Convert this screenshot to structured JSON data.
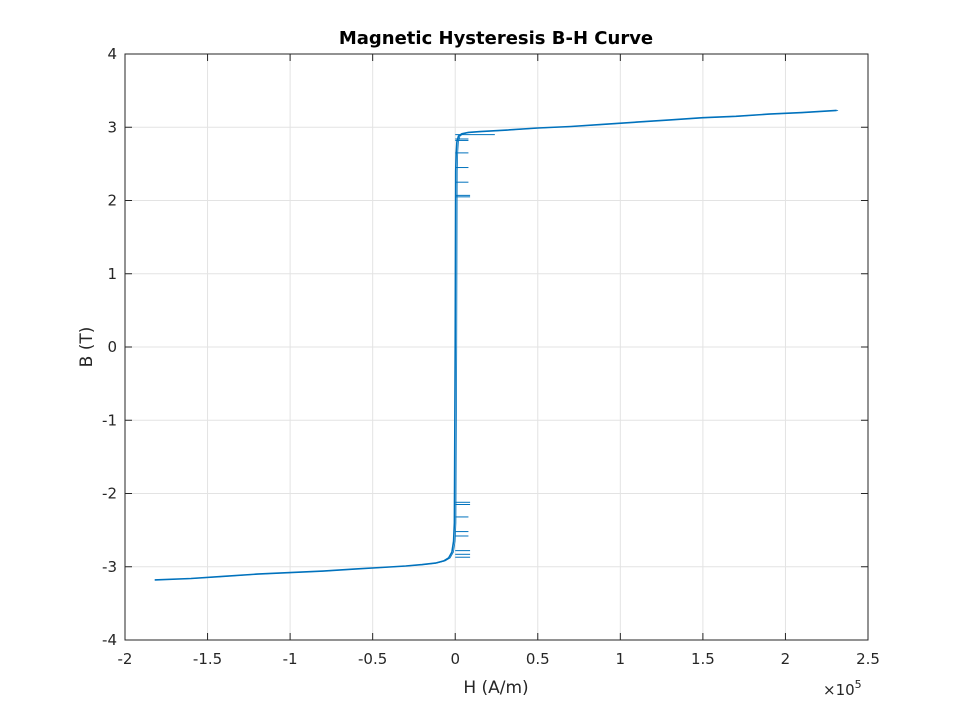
{
  "chart_data": {
    "type": "line",
    "title": "Magnetic Hysteresis B-H Curve",
    "xlabel": "H (A/m)",
    "ylabel": "B (T)",
    "x_multiplier_label": "×10",
    "x_multiplier_exponent": "5",
    "x_scale_factor": 100000,
    "xlim": [
      -2,
      2.5
    ],
    "ylim": [
      -4,
      4
    ],
    "xticks": [
      -2,
      -1.5,
      -1,
      -0.5,
      0,
      0.5,
      1,
      1.5,
      2,
      2.5
    ],
    "xtick_labels": [
      "-2",
      "-1.5",
      "-1",
      "-0.5",
      "0",
      "0.5",
      "1",
      "1.5",
      "2",
      "2.5"
    ],
    "yticks": [
      -4,
      -3,
      -2,
      -1,
      0,
      1,
      2,
      3,
      4
    ],
    "ytick_labels": [
      "-4",
      "-3",
      "-2",
      "-1",
      "0",
      "1",
      "2",
      "3",
      "4"
    ],
    "grid": true,
    "legend": "none",
    "line_color": "#0072BD",
    "series": [
      {
        "x": [
          -1.82,
          -1.6,
          -1.4,
          -1.2,
          -1.0,
          -0.8,
          -0.6,
          -0.45,
          -0.3,
          -0.2,
          -0.12,
          -0.07,
          -0.04,
          -0.02,
          -0.01,
          -0.005,
          0.0,
          0.003,
          0.006,
          0.01,
          0.02,
          0.04,
          0.08,
          0.15,
          0.3,
          0.5,
          0.7,
          0.9,
          1.1,
          1.3,
          1.5,
          1.7,
          1.9,
          2.1,
          2.31
        ],
        "y": [
          -3.18,
          -3.16,
          -3.13,
          -3.1,
          -3.08,
          -3.06,
          -3.03,
          -3.01,
          -2.99,
          -2.97,
          -2.95,
          -2.92,
          -2.88,
          -2.8,
          -2.65,
          -2.4,
          0.0,
          2.4,
          2.65,
          2.8,
          2.88,
          2.91,
          2.93,
          2.94,
          2.96,
          2.99,
          3.01,
          3.04,
          3.07,
          3.1,
          3.13,
          3.15,
          3.18,
          3.2,
          3.23
        ]
      }
    ],
    "spurs": {
      "upper": [
        {
          "y": 2.05,
          "x0": 0.0,
          "x1": 0.09
        },
        {
          "y": 2.07,
          "x0": 0.0,
          "x1": 0.09
        },
        {
          "y": 2.25,
          "x0": 0.0,
          "x1": 0.08
        },
        {
          "y": 2.45,
          "x0": 0.0,
          "x1": 0.08
        },
        {
          "y": 2.65,
          "x0": 0.0,
          "x1": 0.08
        },
        {
          "y": 2.82,
          "x0": 0.0,
          "x1": 0.08
        },
        {
          "y": 2.84,
          "x0": 0.0,
          "x1": 0.08
        },
        {
          "y": 2.9,
          "x0": 0.0,
          "x1": 0.24
        }
      ],
      "lower": [
        {
          "y": -2.12,
          "x0": 0.0,
          "x1": 0.09
        },
        {
          "y": -2.15,
          "x0": 0.0,
          "x1": 0.09
        },
        {
          "y": -2.32,
          "x0": 0.0,
          "x1": 0.08
        },
        {
          "y": -2.52,
          "x0": 0.0,
          "x1": 0.08
        },
        {
          "y": -2.58,
          "x0": 0.0,
          "x1": 0.08
        },
        {
          "y": -2.78,
          "x0": 0.0,
          "x1": 0.09
        },
        {
          "y": -2.83,
          "x0": 0.0,
          "x1": 0.09
        },
        {
          "y": -2.87,
          "x0": 0.0,
          "x1": 0.09
        }
      ]
    }
  }
}
